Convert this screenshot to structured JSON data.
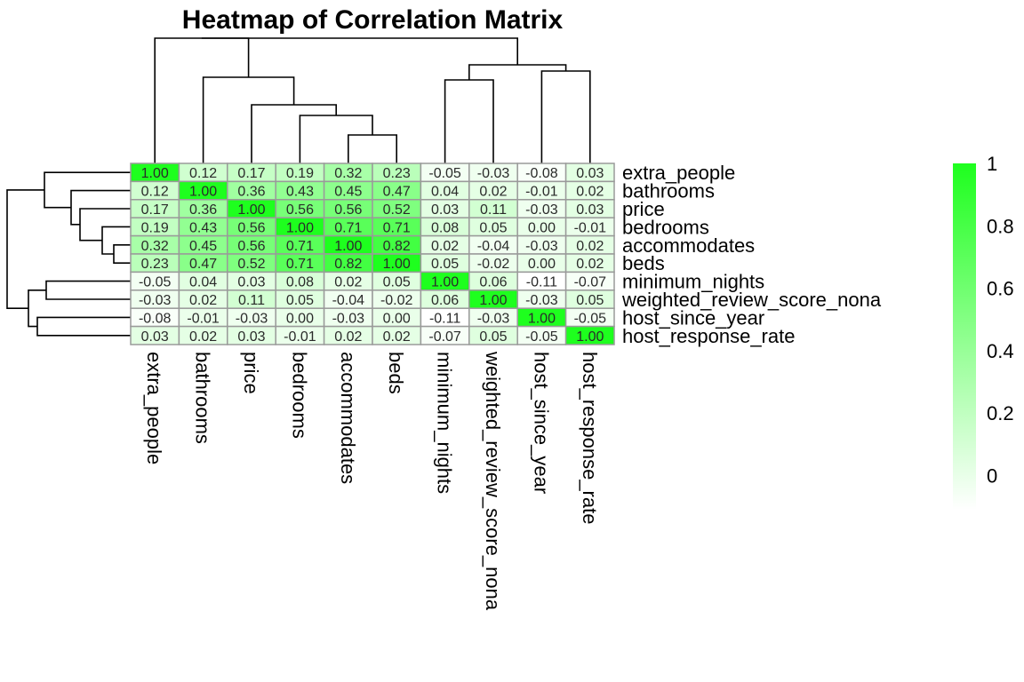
{
  "chart_data": {
    "type": "heatmap",
    "title": "Heatmap of Correlation Matrix",
    "rows": [
      "extra_people",
      "bathrooms",
      "price",
      "bedrooms",
      "accommodates",
      "beds",
      "minimum_nights",
      "weighted_review_score_nona",
      "host_since_year",
      "host_response_rate"
    ],
    "columns": [
      "extra_people",
      "bathrooms",
      "price",
      "bedrooms",
      "accommodates",
      "beds",
      "minimum_nights",
      "weighted_review_score_nona",
      "host_since_year",
      "host_response_rate"
    ],
    "values": [
      [
        1.0,
        0.12,
        0.17,
        0.19,
        0.32,
        0.23,
        -0.05,
        -0.03,
        -0.08,
        0.03
      ],
      [
        0.12,
        1.0,
        0.36,
        0.43,
        0.45,
        0.47,
        0.04,
        0.02,
        -0.01,
        0.02
      ],
      [
        0.17,
        0.36,
        1.0,
        0.56,
        0.56,
        0.52,
        0.03,
        0.11,
        -0.03,
        0.03
      ],
      [
        0.19,
        0.43,
        0.56,
        1.0,
        0.71,
        0.71,
        0.08,
        0.05,
        0.0,
        -0.01
      ],
      [
        0.32,
        0.45,
        0.56,
        0.71,
        1.0,
        0.82,
        0.02,
        -0.04,
        -0.03,
        0.02
      ],
      [
        0.23,
        0.47,
        0.52,
        0.71,
        0.82,
        1.0,
        0.05,
        -0.02,
        0.0,
        0.02
      ],
      [
        -0.05,
        0.04,
        0.03,
        0.08,
        0.02,
        0.05,
        1.0,
        0.06,
        -0.11,
        -0.07
      ],
      [
        -0.03,
        0.02,
        0.11,
        0.05,
        -0.04,
        -0.02,
        0.06,
        1.0,
        -0.03,
        0.05
      ],
      [
        -0.08,
        -0.01,
        -0.03,
        0.0,
        -0.03,
        0.0,
        -0.11,
        -0.03,
        1.0,
        -0.05
      ],
      [
        0.03,
        0.02,
        0.03,
        -0.01,
        0.02,
        0.02,
        -0.07,
        0.05,
        -0.05,
        1.0
      ]
    ],
    "value_labels_shown": true,
    "color_scale": {
      "min": -0.11,
      "max": 1.0,
      "low_color": "#ffffff",
      "high_color": "#1eff1e"
    },
    "legend": {
      "ticks": [
        "0",
        "0.2",
        "0.4",
        "0.6",
        "0.8",
        "1"
      ],
      "tick_values": [
        0,
        0.2,
        0.4,
        0.6,
        0.8,
        1
      ],
      "placement": "right"
    },
    "dendrograms": {
      "rows": true,
      "columns": true
    }
  }
}
